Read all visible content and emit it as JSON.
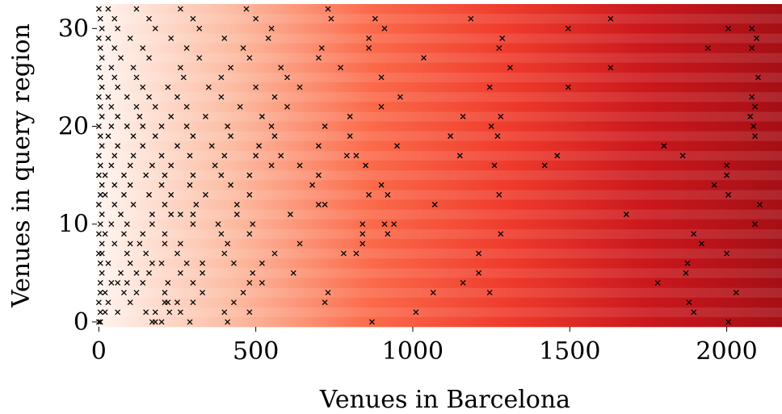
{
  "chart_data": {
    "type": "scatter",
    "title": "",
    "xlabel": "Venues in Barcelona",
    "ylabel": "Venues in query region",
    "xlim": [
      -6,
      2176
    ],
    "ylim": [
      -0.5,
      32.5
    ],
    "x_ticks": [
      {
        "value": 0,
        "label": "0"
      },
      {
        "value": 500,
        "label": "500"
      },
      {
        "value": 1000,
        "label": "1000"
      },
      {
        "value": 1500,
        "label": "1500"
      },
      {
        "value": 2000,
        "label": "2000"
      }
    ],
    "y_ticks": [
      {
        "value": 0,
        "label": "0"
      },
      {
        "value": 10,
        "label": "10"
      },
      {
        "value": 20,
        "label": "20"
      },
      {
        "value": 30,
        "label": "30"
      }
    ],
    "background": {
      "type": "heatmap",
      "rows": 33,
      "colormap": "Reds",
      "gradient_direction": "increasing-x",
      "colors": [
        "#fff5f0",
        "#fcbba1",
        "#fb6a4a",
        "#ef3b2c",
        "#cb181d",
        "#a50f15"
      ]
    },
    "marker": "x",
    "marker_color": "#000000",
    "points": [
      [
        0,
        0
      ],
      [
        5,
        0
      ],
      [
        170,
        0
      ],
      [
        180,
        0
      ],
      [
        200,
        0
      ],
      [
        290,
        0
      ],
      [
        410,
        0
      ],
      [
        870,
        0
      ],
      [
        2005,
        0
      ],
      [
        5,
        1
      ],
      [
        20,
        1
      ],
      [
        60,
        1
      ],
      [
        150,
        1
      ],
      [
        180,
        1
      ],
      [
        225,
        1
      ],
      [
        260,
        1
      ],
      [
        400,
        1
      ],
      [
        480,
        1
      ],
      [
        1010,
        1
      ],
      [
        1895,
        1
      ],
      [
        0,
        2
      ],
      [
        30,
        2
      ],
      [
        100,
        2
      ],
      [
        210,
        2
      ],
      [
        220,
        2
      ],
      [
        250,
        2
      ],
      [
        300,
        2
      ],
      [
        430,
        2
      ],
      [
        720,
        2
      ],
      [
        1880,
        2
      ],
      [
        5,
        3
      ],
      [
        20,
        3
      ],
      [
        80,
        3
      ],
      [
        120,
        3
      ],
      [
        210,
        3
      ],
      [
        330,
        3
      ],
      [
        460,
        3
      ],
      [
        730,
        3
      ],
      [
        1065,
        3
      ],
      [
        1245,
        3
      ],
      [
        2030,
        3
      ],
      [
        5,
        4
      ],
      [
        40,
        4
      ],
      [
        60,
        4
      ],
      [
        90,
        4
      ],
      [
        140,
        4
      ],
      [
        220,
        4
      ],
      [
        300,
        4
      ],
      [
        480,
        4
      ],
      [
        520,
        4
      ],
      [
        1160,
        4
      ],
      [
        1780,
        4
      ],
      [
        10,
        5
      ],
      [
        70,
        5
      ],
      [
        120,
        5
      ],
      [
        160,
        5
      ],
      [
        260,
        5
      ],
      [
        330,
        5
      ],
      [
        490,
        5
      ],
      [
        620,
        5
      ],
      [
        1210,
        5
      ],
      [
        1870,
        5
      ],
      [
        5,
        6
      ],
      [
        30,
        6
      ],
      [
        100,
        6
      ],
      [
        170,
        6
      ],
      [
        200,
        6
      ],
      [
        280,
        6
      ],
      [
        330,
        6
      ],
      [
        430,
        6
      ],
      [
        520,
        6
      ],
      [
        1875,
        6
      ],
      [
        0,
        7
      ],
      [
        10,
        7
      ],
      [
        90,
        7
      ],
      [
        150,
        7
      ],
      [
        250,
        7
      ],
      [
        400,
        7
      ],
      [
        560,
        7
      ],
      [
        780,
        7
      ],
      [
        820,
        7
      ],
      [
        1210,
        7
      ],
      [
        2000,
        7
      ],
      [
        10,
        8
      ],
      [
        50,
        8
      ],
      [
        100,
        8
      ],
      [
        130,
        8
      ],
      [
        210,
        8
      ],
      [
        260,
        8
      ],
      [
        410,
        8
      ],
      [
        640,
        8
      ],
      [
        840,
        8
      ],
      [
        1920,
        8
      ],
      [
        0,
        9
      ],
      [
        20,
        9
      ],
      [
        80,
        9
      ],
      [
        140,
        9
      ],
      [
        210,
        9
      ],
      [
        390,
        9
      ],
      [
        480,
        9
      ],
      [
        840,
        9
      ],
      [
        920,
        9
      ],
      [
        1280,
        9
      ],
      [
        1895,
        9
      ],
      [
        5,
        10
      ],
      [
        40,
        10
      ],
      [
        90,
        10
      ],
      [
        170,
        10
      ],
      [
        300,
        10
      ],
      [
        380,
        10
      ],
      [
        490,
        10
      ],
      [
        840,
        10
      ],
      [
        910,
        10
      ],
      [
        940,
        10
      ],
      [
        2090,
        10
      ],
      [
        10,
        11
      ],
      [
        70,
        11
      ],
      [
        170,
        11
      ],
      [
        230,
        11
      ],
      [
        260,
        11
      ],
      [
        300,
        11
      ],
      [
        440,
        11
      ],
      [
        610,
        11
      ],
      [
        1680,
        11
      ],
      [
        0,
        12
      ],
      [
        50,
        12
      ],
      [
        110,
        12
      ],
      [
        210,
        12
      ],
      [
        310,
        12
      ],
      [
        440,
        12
      ],
      [
        700,
        12
      ],
      [
        720,
        12
      ],
      [
        1070,
        12
      ],
      [
        2105,
        12
      ],
      [
        5,
        13
      ],
      [
        20,
        13
      ],
      [
        80,
        13
      ],
      [
        160,
        13
      ],
      [
        230,
        13
      ],
      [
        340,
        13
      ],
      [
        480,
        13
      ],
      [
        860,
        13
      ],
      [
        920,
        13
      ],
      [
        1275,
        13
      ],
      [
        2005,
        13
      ],
      [
        10,
        14
      ],
      [
        50,
        14
      ],
      [
        100,
        14
      ],
      [
        200,
        14
      ],
      [
        290,
        14
      ],
      [
        420,
        14
      ],
      [
        680,
        14
      ],
      [
        900,
        14
      ],
      [
        1960,
        14
      ],
      [
        0,
        15
      ],
      [
        20,
        15
      ],
      [
        80,
        15
      ],
      [
        150,
        15
      ],
      [
        210,
        15
      ],
      [
        300,
        15
      ],
      [
        390,
        15
      ],
      [
        480,
        15
      ],
      [
        700,
        15
      ],
      [
        2000,
        15
      ],
      [
        5,
        16
      ],
      [
        40,
        16
      ],
      [
        100,
        16
      ],
      [
        170,
        16
      ],
      [
        230,
        16
      ],
      [
        370,
        16
      ],
      [
        550,
        16
      ],
      [
        640,
        16
      ],
      [
        850,
        16
      ],
      [
        1260,
        16
      ],
      [
        1420,
        16
      ],
      [
        2000,
        16
      ],
      [
        0,
        17
      ],
      [
        50,
        17
      ],
      [
        110,
        17
      ],
      [
        200,
        17
      ],
      [
        290,
        17
      ],
      [
        400,
        17
      ],
      [
        500,
        17
      ],
      [
        580,
        17
      ],
      [
        790,
        17
      ],
      [
        820,
        17
      ],
      [
        1150,
        17
      ],
      [
        1460,
        17
      ],
      [
        1860,
        17
      ],
      [
        10,
        18
      ],
      [
        60,
        18
      ],
      [
        140,
        18
      ],
      [
        250,
        18
      ],
      [
        360,
        18
      ],
      [
        510,
        18
      ],
      [
        700,
        18
      ],
      [
        950,
        18
      ],
      [
        1800,
        18
      ],
      [
        5,
        19
      ],
      [
        30,
        19
      ],
      [
        110,
        19
      ],
      [
        180,
        19
      ],
      [
        300,
        19
      ],
      [
        420,
        19
      ],
      [
        560,
        19
      ],
      [
        800,
        19
      ],
      [
        1120,
        19
      ],
      [
        1270,
        19
      ],
      [
        2090,
        19
      ],
      [
        0,
        20
      ],
      [
        40,
        20
      ],
      [
        90,
        20
      ],
      [
        140,
        20
      ],
      [
        200,
        20
      ],
      [
        280,
        20
      ],
      [
        410,
        20
      ],
      [
        550,
        20
      ],
      [
        720,
        20
      ],
      [
        1250,
        20
      ],
      [
        2085,
        20
      ],
      [
        10,
        21
      ],
      [
        60,
        21
      ],
      [
        130,
        21
      ],
      [
        230,
        21
      ],
      [
        340,
        21
      ],
      [
        520,
        21
      ],
      [
        800,
        21
      ],
      [
        1160,
        21
      ],
      [
        1280,
        21
      ],
      [
        2075,
        21
      ],
      [
        5,
        22
      ],
      [
        40,
        22
      ],
      [
        120,
        22
      ],
      [
        180,
        22
      ],
      [
        280,
        22
      ],
      [
        450,
        22
      ],
      [
        600,
        22
      ],
      [
        900,
        22
      ],
      [
        2090,
        22
      ],
      [
        0,
        23
      ],
      [
        30,
        23
      ],
      [
        90,
        23
      ],
      [
        160,
        23
      ],
      [
        250,
        23
      ],
      [
        390,
        23
      ],
      [
        560,
        23
      ],
      [
        960,
        23
      ],
      [
        2080,
        23
      ],
      [
        10,
        24
      ],
      [
        60,
        24
      ],
      [
        140,
        24
      ],
      [
        220,
        24
      ],
      [
        350,
        24
      ],
      [
        500,
        24
      ],
      [
        640,
        24
      ],
      [
        1245,
        24
      ],
      [
        1495,
        24
      ],
      [
        5,
        25
      ],
      [
        50,
        25
      ],
      [
        120,
        25
      ],
      [
        270,
        25
      ],
      [
        390,
        25
      ],
      [
        600,
        25
      ],
      [
        900,
        25
      ],
      [
        2100,
        25
      ],
      [
        0,
        26
      ],
      [
        40,
        26
      ],
      [
        110,
        26
      ],
      [
        260,
        26
      ],
      [
        420,
        26
      ],
      [
        580,
        26
      ],
      [
        770,
        26
      ],
      [
        1310,
        26
      ],
      [
        1630,
        26
      ],
      [
        10,
        27
      ],
      [
        70,
        27
      ],
      [
        160,
        27
      ],
      [
        320,
        27
      ],
      [
        480,
        27
      ],
      [
        700,
        27
      ],
      [
        1035,
        27
      ],
      [
        5,
        28
      ],
      [
        50,
        28
      ],
      [
        140,
        28
      ],
      [
        280,
        28
      ],
      [
        460,
        28
      ],
      [
        710,
        28
      ],
      [
        860,
        28
      ],
      [
        1275,
        28
      ],
      [
        1940,
        28
      ],
      [
        2080,
        28
      ],
      [
        0,
        29
      ],
      [
        30,
        29
      ],
      [
        100,
        29
      ],
      [
        230,
        29
      ],
      [
        400,
        29
      ],
      [
        540,
        29
      ],
      [
        860,
        29
      ],
      [
        1285,
        29
      ],
      [
        2095,
        29
      ],
      [
        10,
        30
      ],
      [
        60,
        30
      ],
      [
        180,
        30
      ],
      [
        320,
        30
      ],
      [
        550,
        30
      ],
      [
        910,
        30
      ],
      [
        1495,
        30
      ],
      [
        2005,
        30
      ],
      [
        2080,
        30
      ],
      [
        5,
        31
      ],
      [
        50,
        31
      ],
      [
        160,
        31
      ],
      [
        300,
        31
      ],
      [
        500,
        31
      ],
      [
        740,
        31
      ],
      [
        880,
        31
      ],
      [
        1185,
        31
      ],
      [
        1630,
        31
      ],
      [
        0,
        32
      ],
      [
        30,
        32
      ],
      [
        120,
        32
      ],
      [
        260,
        32
      ],
      [
        470,
        32
      ],
      [
        730,
        32
      ]
    ]
  }
}
